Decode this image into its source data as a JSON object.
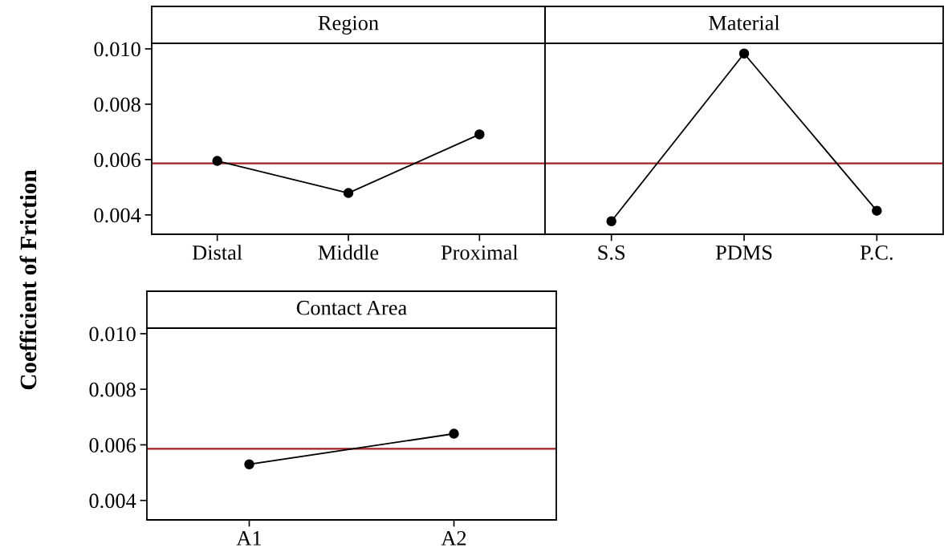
{
  "chart_data": [
    {
      "type": "line",
      "title": "Region",
      "ylabel": "Coefficient of Friction",
      "categories": [
        "Distal",
        "Middle",
        "Proximal"
      ],
      "series": [
        {
          "color": "#000000",
          "values": [
            0.00595,
            0.00479,
            0.00691
          ]
        }
      ],
      "marker": "circle",
      "ylim": [
        0.0033,
        0.0102
      ],
      "yticks": [
        {
          "value": 0.004,
          "label": "0.004"
        },
        {
          "value": 0.006,
          "label": "0.006"
        },
        {
          "value": 0.008,
          "label": "0.008"
        },
        {
          "value": 0.01,
          "label": "0.010"
        }
      ],
      "ref_lines": [
        {
          "axis": "y",
          "value": 0.00586,
          "color": "#a31f24"
        }
      ],
      "grid": false
    },
    {
      "type": "line",
      "title": "Material",
      "categories": [
        "S.S",
        "PDMS",
        "P.C."
      ],
      "series": [
        {
          "color": "#000000",
          "values": [
            0.00377,
            0.00983,
            0.00415
          ]
        }
      ],
      "marker": "circle",
      "ylim": [
        0.0033,
        0.0102
      ],
      "tick_labels": "x",
      "ref_lines": [
        {
          "axis": "y",
          "value": 0.00586,
          "color": "#a31f24"
        }
      ],
      "grid": false
    },
    {
      "type": "line",
      "title": "Contact Area",
      "categories": [
        "A1",
        "A2"
      ],
      "series": [
        {
          "color": "#000000",
          "values": [
            0.0053,
            0.0064
          ]
        }
      ],
      "marker": "circle",
      "ylim": [
        0.0033,
        0.0102
      ],
      "yticks": [
        {
          "value": 0.004,
          "label": "0.004"
        },
        {
          "value": 0.006,
          "label": "0.006"
        },
        {
          "value": 0.008,
          "label": "0.008"
        },
        {
          "value": 0.01,
          "label": "0.010"
        }
      ],
      "ref_lines": [
        {
          "axis": "y",
          "value": 0.00586,
          "color": "#a31f24"
        }
      ],
      "grid": false
    }
  ]
}
